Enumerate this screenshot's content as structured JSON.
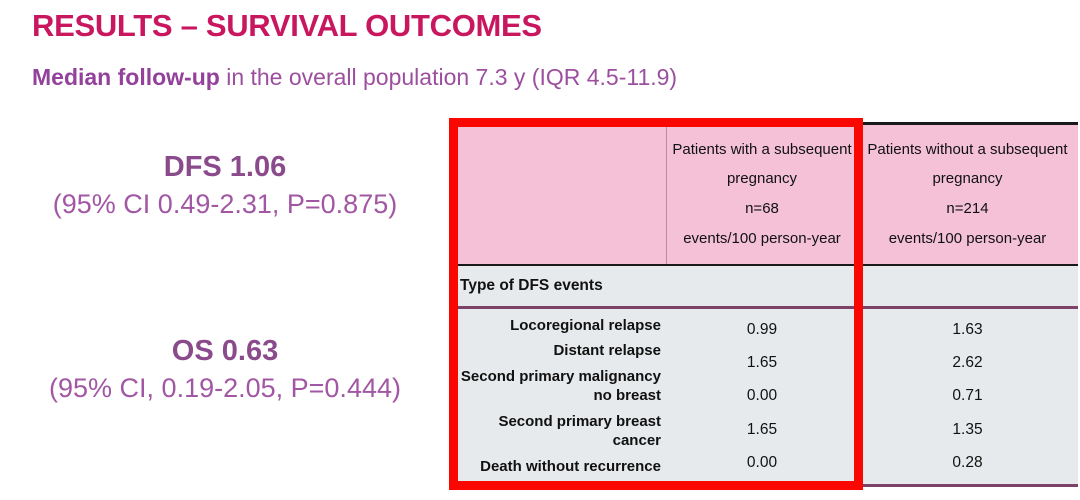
{
  "slide": {
    "title": "RESULTS – SURVIVAL OUTCOMES",
    "subtitle_bold": "Median follow-up",
    "subtitle_rest": " in the overall population 7.3 y (IQR 4.5-11.9)"
  },
  "stats": {
    "dfs": {
      "headline": "DFS 1.06",
      "ci": "(95% CI 0.49-2.31, P=0.875)"
    },
    "os": {
      "headline": "OS 0.63",
      "ci": "(95% CI, 0.19-2.05, P=0.444)"
    }
  },
  "table": {
    "header": {
      "with": [
        "Patients with a subsequent",
        "pregnancy",
        "n=68",
        "events/100 person-year"
      ],
      "without": [
        "Patients without a subsequent",
        "pregnancy",
        "n=214",
        "events/100 person-year"
      ]
    },
    "section_header": "Type of DFS events",
    "rows": [
      {
        "label": "Locoregional relapse",
        "with_pregnancy": "0.99",
        "without_pregnancy": "1.63"
      },
      {
        "label": "Distant relapse",
        "with_pregnancy": "1.65",
        "without_pregnancy": "2.62"
      },
      {
        "label": "Second primary malignancy no breast",
        "with_pregnancy": "0.00",
        "without_pregnancy": "0.71"
      },
      {
        "label": "Second primary breast cancer",
        "with_pregnancy": "1.65",
        "without_pregnancy": "1.35"
      },
      {
        "label": "Death without recurrence",
        "with_pregnancy": "0.00",
        "without_pregnancy": "0.28"
      }
    ]
  },
  "colors": {
    "title": "#C9175F",
    "subtitle_purple": "#9C4F9E",
    "stat_purple": "#8A4A8C",
    "header_pink": "#F4C1D7",
    "body_gray": "#E7EAEC",
    "maroon_line": "#7E4168",
    "highlight_red": "#FA0702"
  }
}
